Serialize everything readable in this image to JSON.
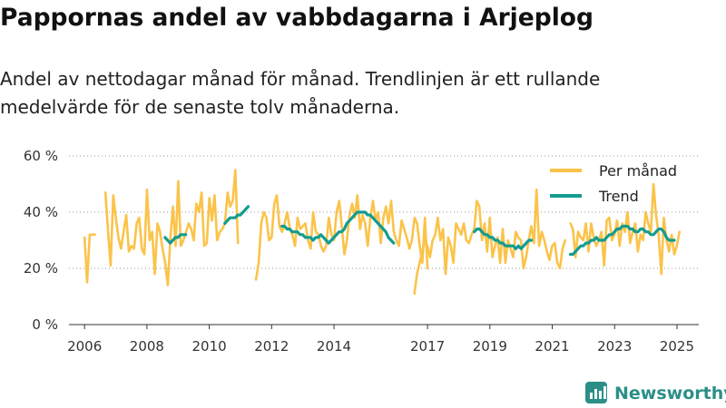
{
  "title": "Pappornas andel av vabbdagarna i Arjeplog",
  "subtitle": "Andel av nettodagar månad för månad. Trendlinjen är ett rullande medelvärde för de senaste tolv månaderna.",
  "brand": {
    "name": "Newsworthy",
    "icon": "newsworthy-logo-icon"
  },
  "colors": {
    "monthly": "#fbc34a",
    "trend": "#149c90",
    "grid": "#999999",
    "brand": "#2b8f87"
  },
  "chart_data": {
    "type": "line",
    "title": "Pappornas andel av vabbdagarna i Arjeplog",
    "xlabel": "",
    "ylabel": "",
    "ylim": [
      0,
      60
    ],
    "xlim": [
      2005.5,
      2025.7
    ],
    "y_ticks": [
      {
        "value": 0,
        "label": "0 %"
      },
      {
        "value": 20,
        "label": "20 %"
      },
      {
        "value": 40,
        "label": "40 %"
      },
      {
        "value": 60,
        "label": "60 %"
      }
    ],
    "x_ticks": [
      {
        "value": 2006,
        "label": "2006"
      },
      {
        "value": 2008,
        "label": "2008"
      },
      {
        "value": 2010,
        "label": "2010"
      },
      {
        "value": 2012,
        "label": "2012"
      },
      {
        "value": 2014,
        "label": "2014"
      },
      {
        "value": 2017,
        "label": "2017"
      },
      {
        "value": 2019,
        "label": "2019"
      },
      {
        "value": 2021,
        "label": "2021"
      },
      {
        "value": 2023,
        "label": "2023"
      },
      {
        "value": 2025,
        "label": "2025"
      }
    ],
    "legend": {
      "position": "top-right"
    },
    "series": [
      {
        "name": "Per månad",
        "key": "monthly",
        "segments": [
          {
            "start": 2006.0,
            "values": [
              31,
              15,
              32,
              32,
              32
            ]
          },
          {
            "start": 2006.67,
            "values": [
              47,
              33,
              21,
              46,
              38,
              31,
              27,
              33,
              39,
              26,
              28,
              27,
              36,
              38,
              27,
              25,
              48,
              30,
              33,
              18,
              36,
              33,
              27,
              22,
              14,
              31,
              42,
              28,
              51,
              28,
              30,
              33,
              36,
              34,
              30,
              43,
              40,
              47,
              28,
              29,
              45,
              37,
              46,
              30,
              33,
              34,
              36,
              47,
              42,
              44,
              55,
              29
            ]
          },
          {
            "start": 2011.5,
            "values": [
              16,
              22,
              36,
              40,
              38,
              30,
              31,
              43,
              46,
              35,
              33,
              36,
              40,
              34,
              32,
              28,
              38,
              34,
              35,
              36,
              30,
              27,
              40,
              33,
              32,
              28,
              26,
              28,
              38,
              32,
              30,
              40,
              44,
              35,
              25,
              30,
              39,
              43,
              38,
              46,
              34,
              39,
              36,
              28,
              38,
              44,
              37,
              40,
              29,
              38,
              42,
              36,
              44,
              33,
              30,
              28,
              37,
              34,
              31,
              27,
              30,
              38,
              36,
              28,
              22,
              38,
              20
            ]
          },
          {
            "start": 2016.58,
            "values": [
              11,
              18,
              22,
              26,
              30,
              28,
              24,
              30,
              32,
              38,
              30,
              34,
              18,
              31,
              28,
              22,
              36,
              34,
              32,
              36,
              30,
              29,
              32,
              34,
              44,
              42,
              30,
              36,
              26,
              38,
              24,
              28,
              31,
              22,
              34,
              22,
              30,
              27,
              24,
              33,
              31,
              30,
              20,
              24,
              30,
              35,
              29,
              48,
              28,
              33,
              30,
              26,
              23,
              28,
              29,
              22,
              20,
              27,
              30
            ]
          },
          {
            "start": 2021.58,
            "values": [
              36,
              34,
              24,
              33,
              31,
              30,
              36,
              26,
              36,
              31,
              28,
              30,
              33,
              21,
              37,
              38,
              30,
              32,
              37,
              28,
              36,
              33,
              40,
              29,
              33,
              36,
              26,
              32,
              30,
              40,
              36,
              33,
              50,
              39,
              32,
              18,
              38,
              30,
              26,
              32,
              25,
              28,
              33
            ]
          }
        ]
      },
      {
        "name": "Trend",
        "key": "trend",
        "segments": [
          {
            "start": 2008.58,
            "values": [
              31,
              30,
              29,
              30,
              31,
              31,
              32,
              32,
              32
            ]
          },
          {
            "start": 2010.5,
            "values": [
              36,
              37,
              38,
              38,
              38,
              39,
              39,
              40,
              41,
              42
            ]
          },
          {
            "start": 2012.33,
            "values": [
              35,
              35,
              34,
              34,
              33,
              33,
              33,
              32,
              32,
              31,
              31,
              31,
              30,
              31,
              31,
              32,
              31,
              30,
              29,
              30,
              31,
              32,
              33,
              33,
              34,
              36,
              37,
              38,
              39,
              40,
              40,
              40,
              40,
              39,
              39,
              38,
              37,
              36,
              35,
              34,
              33,
              31,
              30,
              29
            ]
          },
          {
            "start": 2018.5,
            "values": [
              33,
              34,
              34,
              33,
              32,
              32,
              31,
              31,
              30,
              30,
              29,
              29,
              28,
              28,
              28,
              28,
              27,
              28,
              27,
              28,
              29,
              30,
              30
            ]
          },
          {
            "start": 2021.58,
            "values": [
              25,
              25,
              26,
              27,
              28,
              28,
              29,
              29,
              30,
              30,
              31,
              30,
              30,
              30,
              31,
              32,
              32,
              33,
              34,
              34,
              35,
              35,
              35,
              34,
              34,
              33,
              33,
              34,
              34,
              33,
              33,
              32,
              32,
              33,
              34,
              34,
              33,
              31,
              30,
              30,
              30
            ]
          }
        ]
      }
    ]
  }
}
